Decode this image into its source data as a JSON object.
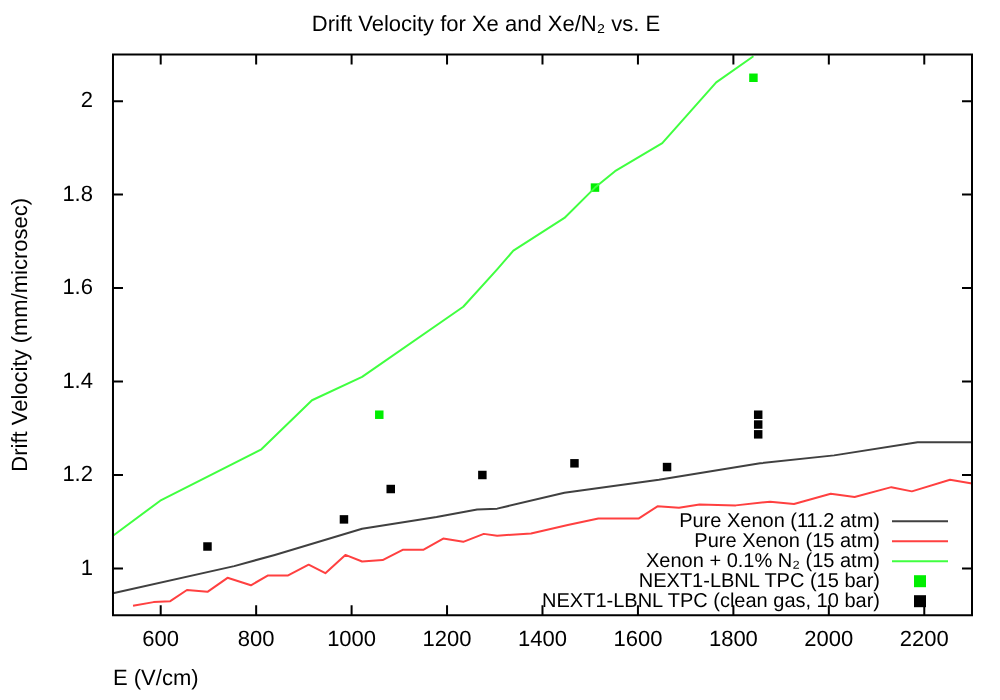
{
  "chart_data": {
    "type": "line",
    "title": "Drift Velocity for Xe and Xe/N₂ vs. E",
    "xlabel": "E (V/cm)",
    "ylabel": "Drift Velocity (mm/microsec)",
    "xlim": [
      500,
      2300
    ],
    "xticks": [
      600,
      800,
      1000,
      1200,
      1400,
      1600,
      1800,
      2000,
      2200
    ],
    "ylim": [
      0.9,
      2.1
    ],
    "yticks": [
      1,
      1.2,
      1.4,
      1.6,
      1.8,
      2
    ],
    "grid": false,
    "legend": "bottom right",
    "marker": "none",
    "series": [
      {
        "name": "Pure Xenon (11.2 atm)",
        "color": "#404040",
        "x": [
          500,
          754,
          839,
          1022,
          1178,
          1263,
          1305,
          1446,
          1644,
          1856,
          2011,
          2186,
          2300
        ],
        "values": [
          0.947,
          1.005,
          1.029,
          1.085,
          1.11,
          1.126,
          1.128,
          1.162,
          1.19,
          1.225,
          1.242,
          1.27,
          1.27
        ]
      },
      {
        "name": "Pure Xenon (15 atm)",
        "color": "#ff4040",
        "x": [
          542,
          585,
          620,
          655,
          698,
          740,
          789,
          825,
          867,
          910,
          945,
          987,
          1022,
          1065,
          1107,
          1150,
          1192,
          1234,
          1277,
          1305,
          1376,
          1453,
          1517,
          1602,
          1641,
          1686,
          1729,
          1805,
          1877,
          1927,
          2004,
          2054,
          2131,
          2174,
          2254,
          2300
        ],
        "values": [
          0.92,
          0.928,
          0.93,
          0.954,
          0.95,
          0.98,
          0.964,
          0.985,
          0.985,
          1.008,
          0.99,
          1.029,
          1.015,
          1.018,
          1.04,
          1.04,
          1.064,
          1.057,
          1.074,
          1.07,
          1.075,
          1.093,
          1.107,
          1.107,
          1.133,
          1.13,
          1.137,
          1.135,
          1.143,
          1.138,
          1.16,
          1.153,
          1.174,
          1.165,
          1.19,
          1.182
        ]
      },
      {
        "name": "Xenon + 0.1% N₂ (15 atm)",
        "color": "#40ff40",
        "x": [
          500,
          599,
          811,
          917,
          1022,
          1234,
          1305,
          1339,
          1446,
          1510,
          1552,
          1651,
          1764,
          1842
        ],
        "values": [
          1.07,
          1.145,
          1.255,
          1.36,
          1.41,
          1.56,
          1.64,
          1.68,
          1.75,
          1.815,
          1.85,
          1.91,
          2.04,
          2.096
        ]
      },
      {
        "name": "NEXT1-LBNL TPC (15 bar)",
        "type": "scatter",
        "marker": "square",
        "color": "#00ee00",
        "x": [
          1058,
          1510,
          1842
        ],
        "values": [
          1.329,
          1.815,
          2.05
        ]
      },
      {
        "name": "NEXT1-LBNL TPC (clean gas, 10 bar)",
        "type": "scatter",
        "marker": "square",
        "color": "#000000",
        "x": [
          698,
          984,
          1082,
          1274,
          1467,
          1661,
          1852,
          1852,
          1852
        ],
        "values": [
          1.047,
          1.105,
          1.17,
          1.2,
          1.225,
          1.217,
          1.329,
          1.308,
          1.287
        ]
      }
    ]
  }
}
